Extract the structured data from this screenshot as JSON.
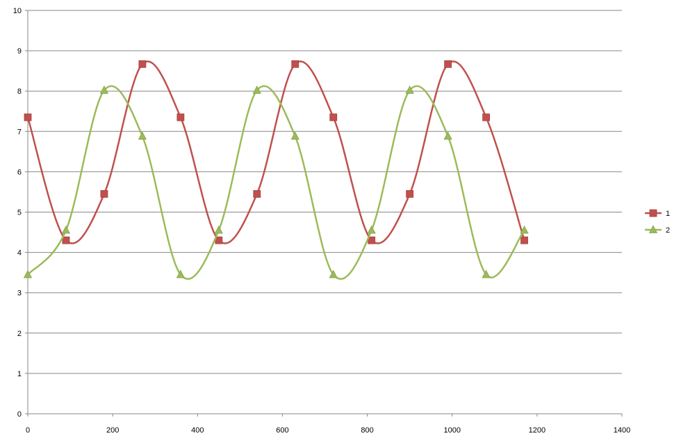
{
  "chart_data": {
    "type": "line",
    "title": "",
    "xlabel": "",
    "ylabel": "",
    "xlim": [
      0,
      1400
    ],
    "ylim": [
      0,
      10
    ],
    "x_ticks": [
      0,
      200,
      400,
      600,
      800,
      1000,
      1200,
      1400
    ],
    "y_ticks": [
      0,
      1,
      2,
      3,
      4,
      5,
      6,
      7,
      8,
      9,
      10
    ],
    "grid": "horizontal",
    "smooth": true,
    "legend": "right",
    "series": [
      {
        "name": "1",
        "color": "#C0504D",
        "marker": "square",
        "x": [
          0,
          90,
          180,
          270,
          360,
          450,
          540,
          630,
          720,
          810,
          900,
          990,
          1080,
          1170
        ],
        "y": [
          7.35,
          4.3,
          5.45,
          8.67,
          7.35,
          4.3,
          5.45,
          8.67,
          7.35,
          4.3,
          5.45,
          8.67,
          7.35,
          4.3
        ]
      },
      {
        "name": "2",
        "color": "#9BBB59",
        "marker": "triangle",
        "x": [
          0,
          90,
          180,
          270,
          360,
          450,
          540,
          630,
          720,
          810,
          900,
          990,
          1080,
          1170
        ],
        "y": [
          3.45,
          4.55,
          8.02,
          6.88,
          3.45,
          4.55,
          8.02,
          6.88,
          3.45,
          4.55,
          8.02,
          6.88,
          3.45,
          4.55
        ]
      }
    ]
  }
}
